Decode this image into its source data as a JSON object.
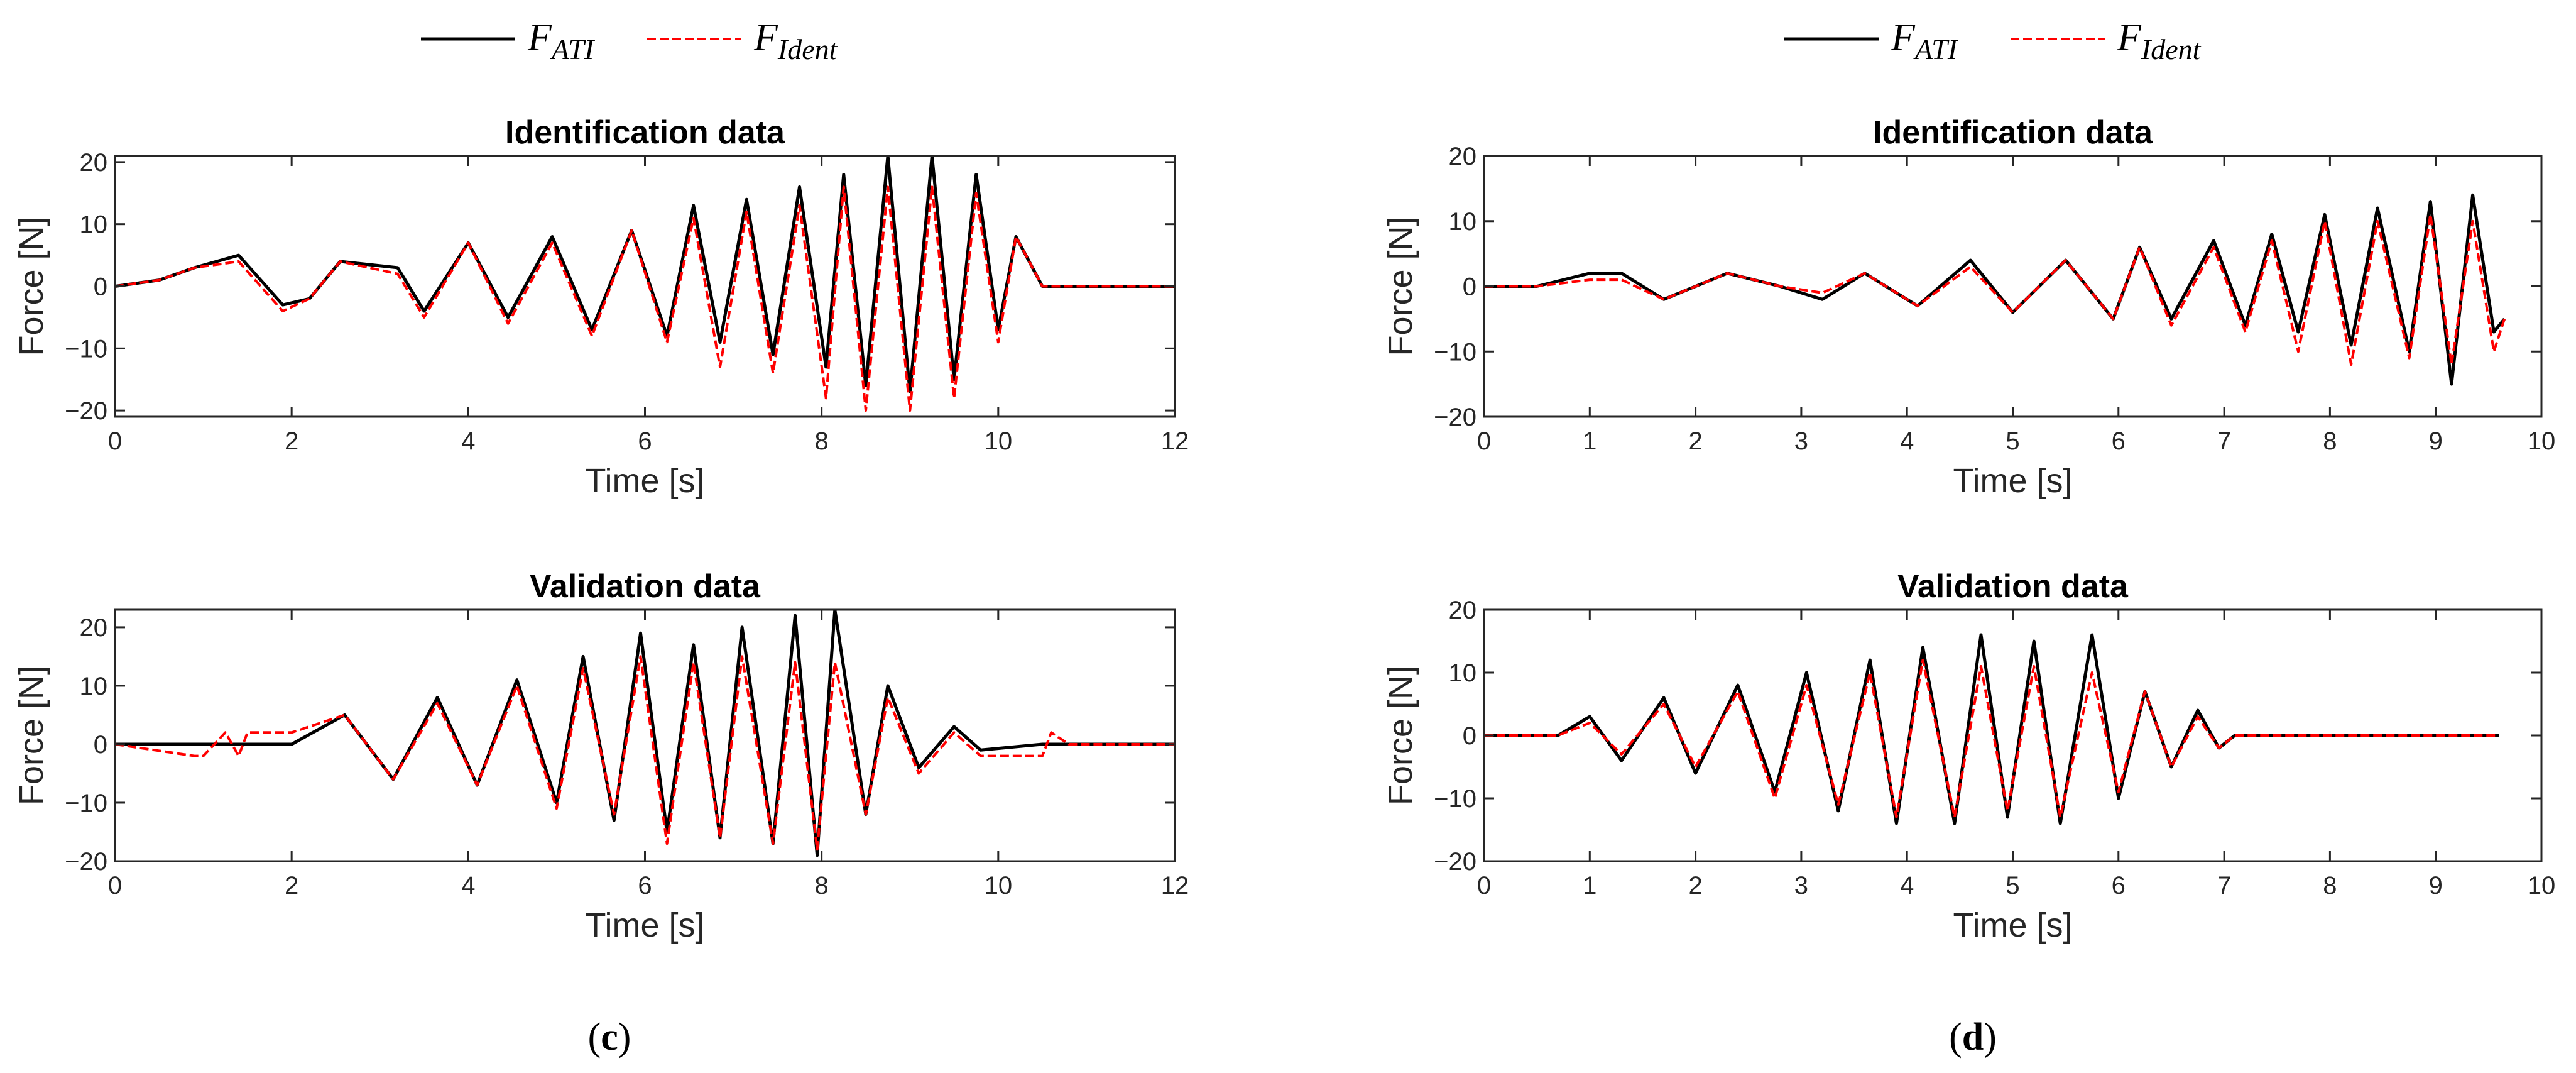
{
  "legend": {
    "entries": [
      {
        "main": "F",
        "sub": "ATI",
        "style": "solid",
        "color": "#000000"
      },
      {
        "main": "F",
        "sub": "Ident",
        "style": "dashed",
        "color": "#ff0000"
      }
    ]
  },
  "panels": [
    {
      "label": "(c)"
    },
    {
      "label": "(d)"
    }
  ],
  "chart_data": [
    {
      "type": "line",
      "title": "Identification data",
      "xlabel": "Time [s]",
      "ylabel": "Force [N]",
      "xlim": [
        0,
        12
      ],
      "ylim": [
        -21,
        21
      ],
      "xticks": [
        0,
        2,
        4,
        6,
        8,
        10,
        12
      ],
      "yticks": [
        -20,
        -10,
        0,
        10,
        20
      ],
      "grid": false,
      "legend": "top",
      "series": [
        {
          "name": "F_ATI",
          "color": "#000000",
          "style": "solid",
          "x": [
            0,
            0.5,
            0.9,
            1.4,
            1.9,
            2.2,
            2.55,
            3.2,
            3.5,
            4.0,
            4.45,
            4.95,
            5.4,
            5.85,
            6.25,
            6.55,
            6.85,
            7.15,
            7.45,
            7.75,
            8.05,
            8.25,
            8.5,
            8.75,
            9.0,
            9.25,
            9.5,
            9.75,
            10.0,
            10.2,
            10.5,
            11,
            12
          ],
          "y": [
            0,
            1,
            3,
            5,
            -3,
            -2,
            4,
            3,
            -4,
            7,
            -5,
            8,
            -7,
            9,
            -8,
            13,
            -9,
            14,
            -11,
            16,
            -13,
            18,
            -16,
            21,
            -17,
            21,
            -15,
            18,
            -7,
            8,
            0,
            0,
            0
          ]
        },
        {
          "name": "F_Ident",
          "color": "#ff0000",
          "style": "dashed",
          "x": [
            0,
            0.5,
            0.9,
            1.4,
            1.9,
            2.2,
            2.55,
            3.2,
            3.5,
            4.0,
            4.45,
            4.95,
            5.4,
            5.85,
            6.25,
            6.55,
            6.85,
            7.15,
            7.45,
            7.75,
            8.05,
            8.25,
            8.5,
            8.75,
            9.0,
            9.25,
            9.5,
            9.75,
            10.0,
            10.2,
            10.5,
            11,
            12
          ],
          "y": [
            0,
            1,
            3,
            4,
            -4,
            -2,
            4,
            2,
            -5,
            7,
            -6,
            7,
            -8,
            9,
            -9,
            11,
            -13,
            12,
            -14,
            13,
            -18,
            16,
            -20,
            16,
            -20,
            16,
            -18,
            15,
            -9,
            8,
            0,
            0,
            0
          ]
        }
      ]
    },
    {
      "type": "line",
      "title": "Validation data",
      "xlabel": "Time [s]",
      "ylabel": "Force [N]",
      "xlim": [
        0,
        12
      ],
      "ylim": [
        -20,
        23
      ],
      "xticks": [
        0,
        2,
        4,
        6,
        8,
        10,
        12
      ],
      "yticks": [
        -20,
        -10,
        0,
        10,
        20
      ],
      "grid": false,
      "legend": "top",
      "series": [
        {
          "name": "F_ATI",
          "color": "#000000",
          "style": "solid",
          "x": [
            0,
            1.0,
            2.0,
            2.6,
            3.15,
            3.65,
            4.1,
            4.55,
            5.0,
            5.3,
            5.65,
            5.95,
            6.25,
            6.55,
            6.85,
            7.1,
            7.45,
            7.7,
            7.95,
            8.15,
            8.5,
            8.75,
            9.1,
            9.5,
            9.8,
            10.5,
            12
          ],
          "y": [
            0,
            0,
            0,
            5,
            -6,
            8,
            -7,
            11,
            -10,
            15,
            -13,
            19,
            -15,
            17,
            -16,
            20,
            -17,
            22,
            -19,
            23,
            -12,
            10,
            -4,
            3,
            -1,
            0,
            0
          ]
        },
        {
          "name": "F_Ident",
          "color": "#ff0000",
          "style": "dashed",
          "x": [
            0,
            0.9,
            1.0,
            1.25,
            1.4,
            1.5,
            1.7,
            2.0,
            2.6,
            3.15,
            3.65,
            4.1,
            4.55,
            5.0,
            5.3,
            5.65,
            5.95,
            6.25,
            6.55,
            6.85,
            7.1,
            7.45,
            7.7,
            7.95,
            8.15,
            8.5,
            8.75,
            9.1,
            9.5,
            9.8,
            10.5,
            10.6,
            10.8,
            12
          ],
          "y": [
            0,
            -2,
            -2,
            2,
            -2,
            2,
            2,
            2,
            5,
            -6,
            7,
            -7,
            10,
            -11,
            13,
            -12,
            15,
            -17,
            14,
            -16,
            15,
            -17,
            14,
            -18,
            14,
            -12,
            8,
            -5,
            2,
            -2,
            -2,
            2,
            0,
            0
          ]
        }
      ]
    },
    {
      "type": "line",
      "title": "Identification data",
      "xlabel": "Time [s]",
      "ylabel": "Force [N]",
      "xlim": [
        0,
        10
      ],
      "ylim": [
        -20,
        20
      ],
      "xticks": [
        0,
        1,
        2,
        3,
        4,
        5,
        6,
        7,
        8,
        9,
        10
      ],
      "yticks": [
        -20,
        -10,
        0,
        10,
        20
      ],
      "grid": false,
      "legend": "top",
      "series": [
        {
          "name": "F_ATI",
          "color": "#000000",
          "style": "solid",
          "x": [
            0,
            0.5,
            1.0,
            1.3,
            1.7,
            2.3,
            2.8,
            3.2,
            3.6,
            4.1,
            4.6,
            5.0,
            5.5,
            5.95,
            6.2,
            6.5,
            6.9,
            7.2,
            7.45,
            7.7,
            7.95,
            8.2,
            8.45,
            8.75,
            8.95,
            9.15,
            9.35,
            9.55,
            9.65
          ],
          "y": [
            0,
            0,
            2,
            2,
            -2,
            2,
            0,
            -2,
            2,
            -3,
            4,
            -4,
            4,
            -5,
            6,
            -5,
            7,
            -6,
            8,
            -7,
            11,
            -9,
            12,
            -10,
            13,
            -15,
            14,
            -7,
            -5
          ]
        },
        {
          "name": "F_Ident",
          "color": "#ff0000",
          "style": "dashed",
          "x": [
            0,
            0.5,
            1.0,
            1.3,
            1.7,
            2.3,
            2.8,
            3.2,
            3.6,
            4.1,
            4.6,
            5.0,
            5.5,
            5.95,
            6.2,
            6.5,
            6.9,
            7.2,
            7.45,
            7.7,
            7.95,
            8.2,
            8.45,
            8.75,
            8.95,
            9.15,
            9.35,
            9.55,
            9.65
          ],
          "y": [
            0,
            0,
            1,
            1,
            -2,
            2,
            0,
            -1,
            2,
            -3,
            3,
            -4,
            4,
            -5,
            6,
            -6,
            6,
            -7,
            7,
            -10,
            10,
            -12,
            10,
            -11,
            11,
            -12,
            10,
            -10,
            -5
          ]
        }
      ]
    },
    {
      "type": "line",
      "title": "Validation data",
      "xlabel": "Time [s]",
      "ylabel": "Force [N]",
      "xlim": [
        0,
        10
      ],
      "ylim": [
        -20,
        20
      ],
      "xticks": [
        0,
        1,
        2,
        3,
        4,
        5,
        6,
        7,
        8,
        9,
        10
      ],
      "yticks": [
        -20,
        -10,
        0,
        10,
        20
      ],
      "grid": false,
      "legend": "top",
      "series": [
        {
          "name": "F_ATI",
          "color": "#000000",
          "style": "solid",
          "x": [
            0,
            0.7,
            1.0,
            1.3,
            1.7,
            2.0,
            2.4,
            2.75,
            3.05,
            3.35,
            3.65,
            3.9,
            4.15,
            4.45,
            4.7,
            4.95,
            5.2,
            5.45,
            5.75,
            6.0,
            6.25,
            6.5,
            6.75,
            6.95,
            7.1,
            7.5,
            9.6
          ],
          "y": [
            0,
            0,
            3,
            -4,
            6,
            -6,
            8,
            -9,
            10,
            -12,
            12,
            -14,
            14,
            -14,
            16,
            -13,
            15,
            -14,
            16,
            -10,
            7,
            -5,
            4,
            -2,
            0,
            0,
            0
          ]
        },
        {
          "name": "F_Ident",
          "color": "#ff0000",
          "style": "dashed",
          "x": [
            0,
            0.7,
            1.0,
            1.3,
            1.7,
            2.0,
            2.4,
            2.75,
            3.05,
            3.35,
            3.65,
            3.9,
            4.15,
            4.45,
            4.7,
            4.95,
            5.2,
            5.45,
            5.75,
            6.0,
            6.25,
            6.5,
            6.75,
            6.95,
            7.1,
            7.5,
            9.6
          ],
          "y": [
            0,
            0,
            2,
            -3,
            5,
            -5,
            7,
            -10,
            8,
            -11,
            10,
            -13,
            12,
            -13,
            11,
            -12,
            11,
            -13,
            10,
            -9,
            7,
            -5,
            3,
            -2,
            0,
            0,
            0
          ]
        }
      ]
    }
  ]
}
